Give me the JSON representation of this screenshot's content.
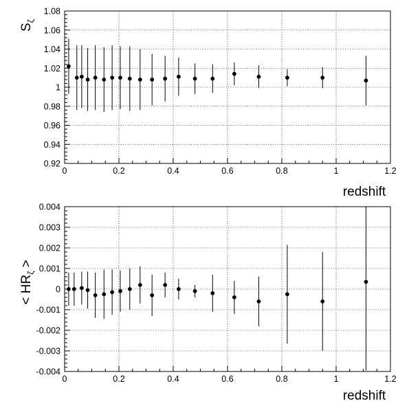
{
  "chart_data": [
    {
      "type": "scatter",
      "title": "",
      "xlabel": "redshift",
      "ylabel": "S_ζ",
      "xlim": [
        0,
        1.2
      ],
      "ylim": [
        0.92,
        1.08
      ],
      "grid": true,
      "xticks": [
        "0",
        "0.2",
        "0.4",
        "0.6",
        "0.8",
        "1",
        "1.2"
      ],
      "yticks": [
        "0.92",
        "0.94",
        "0.96",
        "0.98",
        "1",
        "1.02",
        "1.04",
        "1.06",
        "1.08"
      ],
      "series": [
        {
          "x": [
            0.015,
            0.045,
            0.063,
            0.085,
            0.113,
            0.145,
            0.175,
            0.205,
            0.24,
            0.278,
            0.322,
            0.37,
            0.42,
            0.48,
            0.545,
            0.625,
            0.715,
            0.82,
            0.95,
            1.11
          ],
          "y": [
            1.022,
            1.01,
            1.011,
            1.008,
            1.01,
            1.008,
            1.01,
            1.01,
            1.009,
            1.008,
            1.008,
            1.009,
            1.011,
            1.009,
            1.009,
            1.014,
            1.011,
            1.01,
            1.01,
            1.007
          ],
          "err": [
            0.029,
            0.034,
            0.033,
            0.033,
            0.034,
            0.034,
            0.034,
            0.033,
            0.034,
            0.032,
            0.027,
            0.024,
            0.02,
            0.016,
            0.015,
            0.012,
            0.012,
            0.009,
            0.011,
            0.026
          ]
        }
      ]
    },
    {
      "type": "scatter",
      "title": "",
      "xlabel": "redshift",
      "ylabel": "< HR_ζ >",
      "xlim": [
        0,
        1.2
      ],
      "ylim": [
        -0.004,
        0.004
      ],
      "grid": true,
      "xticks": [
        "0",
        "0.2",
        "0.4",
        "0.6",
        "0.8",
        "1",
        "1.2"
      ],
      "yticks": [
        "-0.004",
        "-0.003",
        "-0.002",
        "-0.001",
        "0",
        "0.001",
        "0.002",
        "0.003",
        "0.004"
      ],
      "series": [
        {
          "x": [
            0.015,
            0.035,
            0.063,
            0.085,
            0.113,
            0.145,
            0.175,
            0.205,
            0.24,
            0.278,
            0.322,
            0.37,
            0.42,
            0.48,
            0.545,
            0.625,
            0.715,
            0.82,
            0.95,
            1.11
          ],
          "y": [
            0.0,
            0.0,
            5e-05,
            -5e-05,
            -0.0003,
            -0.00025,
            -0.00015,
            -0.0001,
            0.0,
            0.0002,
            -0.0003,
            0.0002,
            0.0,
            -0.0001,
            -0.0002,
            -0.0004,
            -0.0006,
            -0.00025,
            -0.0006,
            0.00035
          ],
          "err": [
            0.0008,
            0.0008,
            0.0008,
            0.0009,
            0.0011,
            0.0012,
            0.0011,
            0.001,
            0.001,
            0.0009,
            0.001,
            0.0006,
            0.0005,
            0.0003,
            0.0009,
            0.0008,
            0.0012,
            0.0024,
            0.0024,
            0.0043
          ]
        }
      ]
    }
  ]
}
